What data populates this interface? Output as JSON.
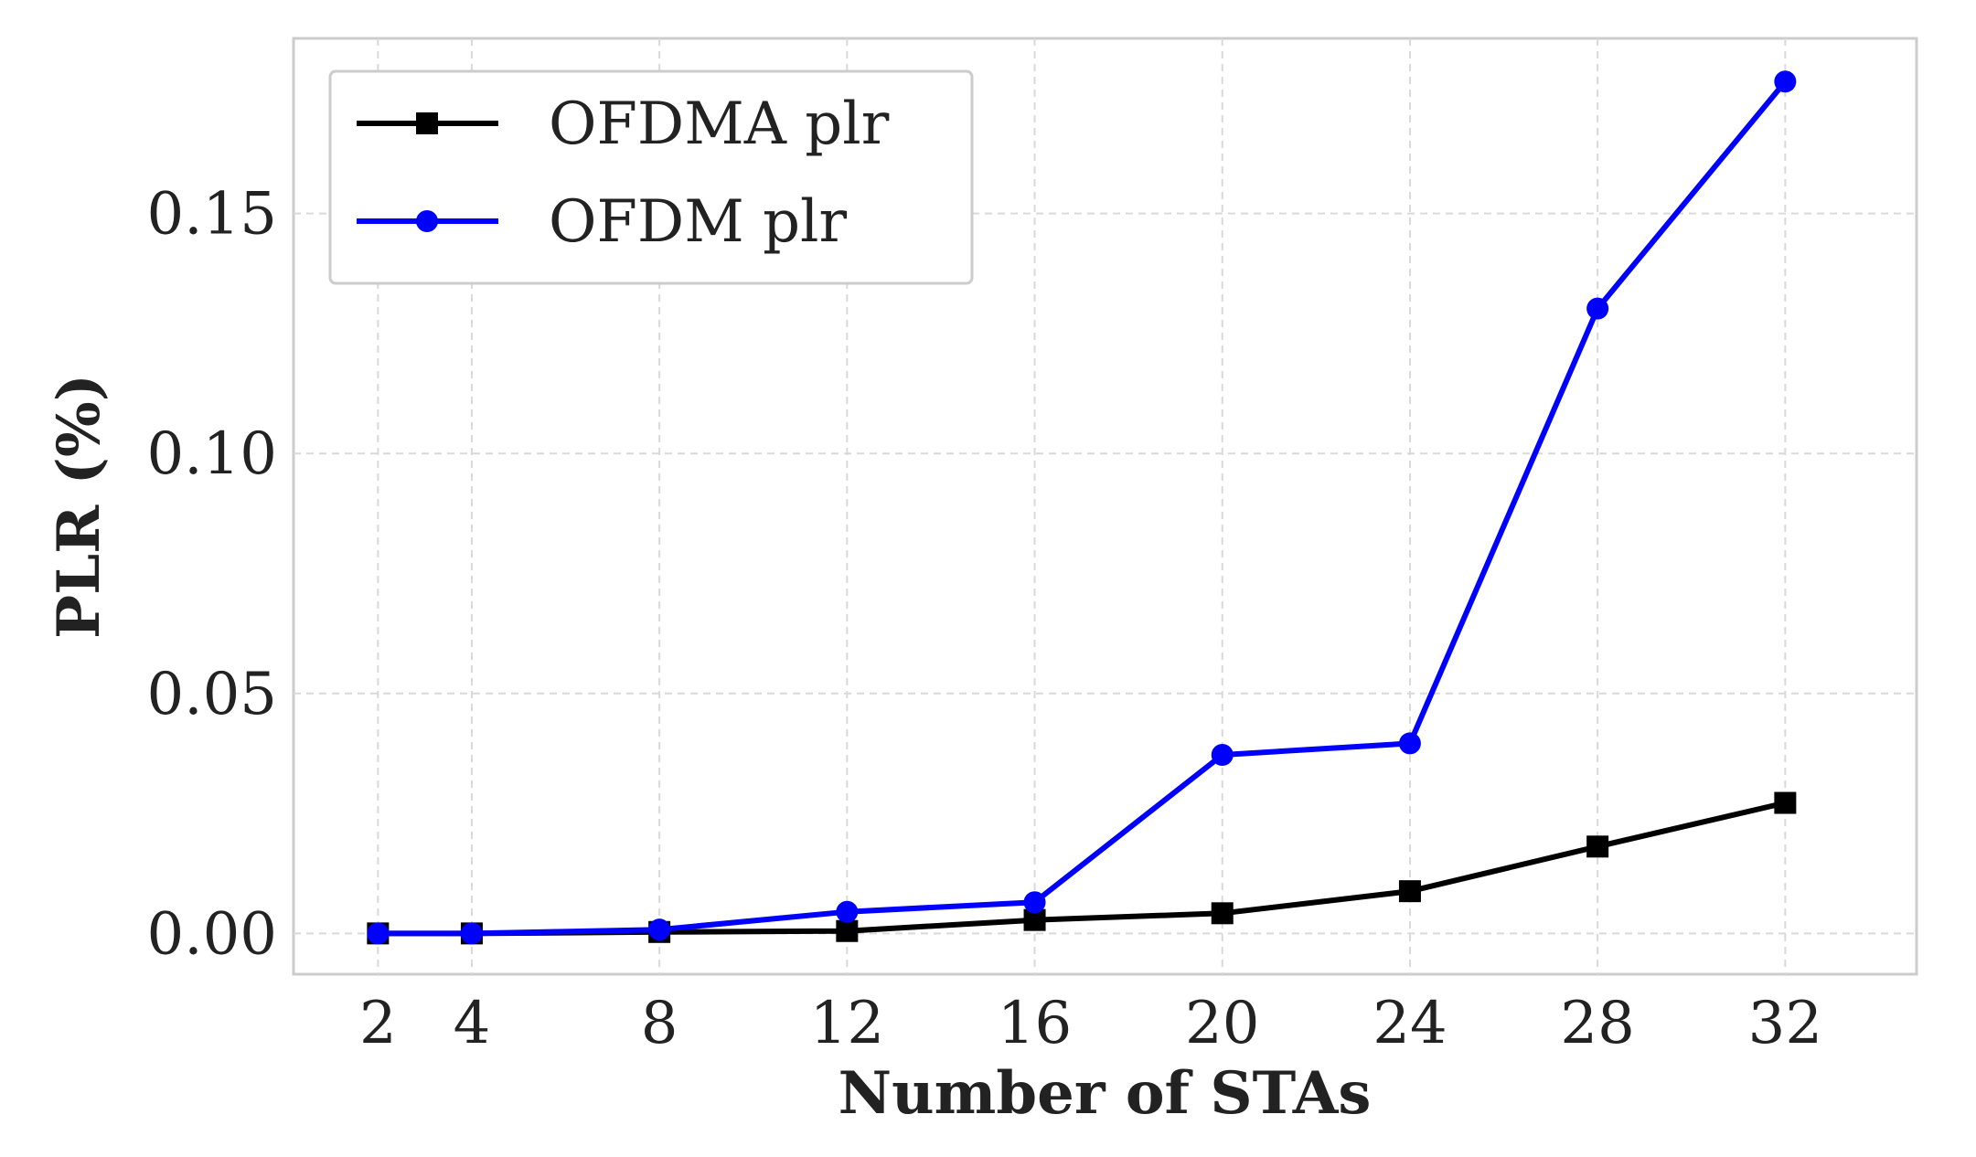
{
  "chart_data": {
    "type": "line",
    "title": "",
    "xlabel": "Number of STAs",
    "ylabel": "PLR (%)",
    "x": [
      2,
      4,
      8,
      12,
      16,
      20,
      24,
      28,
      32
    ],
    "xticks": [
      "2",
      "4",
      "8",
      "12",
      "16",
      "20",
      "24",
      "28",
      "32"
    ],
    "yticks": [
      "0.00",
      "0.05",
      "0.10",
      "0.15"
    ],
    "ytick_values": [
      0.0,
      0.05,
      0.1,
      0.15
    ],
    "xlim": [
      0.2,
      34.8
    ],
    "ylim": [
      -0.0085,
      0.1865
    ],
    "grid": true,
    "legend_position": "top-left",
    "series": [
      {
        "name": "OFDMA plr",
        "color": "#000000",
        "marker": "square",
        "values": [
          0.0,
          0.0,
          0.0003,
          0.0005,
          0.0028,
          0.0042,
          0.0088,
          0.0181,
          0.0272
        ]
      },
      {
        "name": "OFDM plr",
        "color": "#0000ff",
        "marker": "circle",
        "values": [
          0.0,
          0.0,
          0.0008,
          0.0045,
          0.0065,
          0.0372,
          0.0396,
          0.1302,
          0.1775
        ]
      }
    ]
  }
}
